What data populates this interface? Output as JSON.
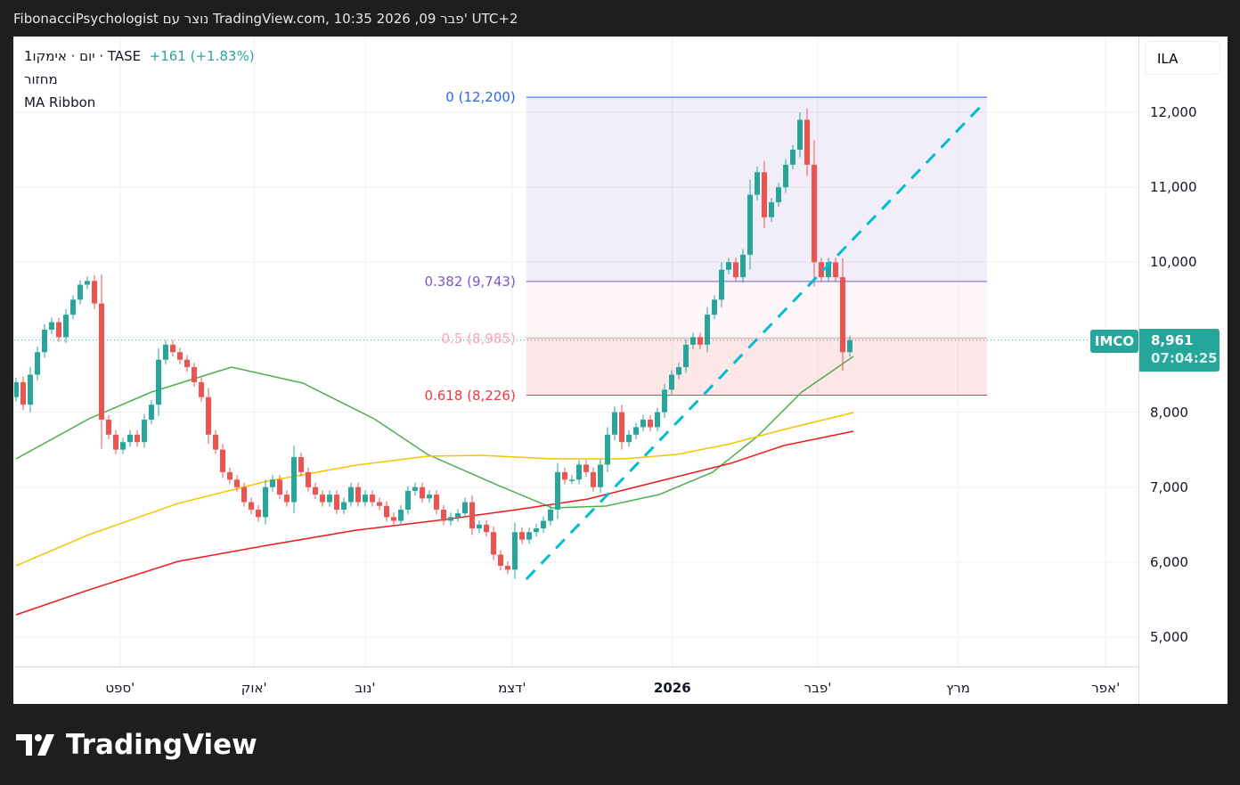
{
  "title": "FibonacciPsychologist נוצר עם TradingView.com, 10:35 2026 ,09 פבר' UTC+2",
  "legend": {
    "symbol": "1יום · אימקו · TASE",
    "change": "+161 (+1.83%)",
    "volume": "מחזור",
    "indicator": "MA Ribbon"
  },
  "currency": "ILA",
  "last_price": {
    "symbol": "IMCO",
    "price": "8,961",
    "countdown": "07:04:25",
    "color": "#26a69a"
  },
  "brand": "TradingView",
  "chart_data": {
    "type": "candlestick",
    "ylim": [
      4620,
      12390
    ],
    "y_ticks": [
      {
        "v": 12000,
        "label": "12,000"
      },
      {
        "v": 11000,
        "label": "11,000"
      },
      {
        "v": 10000,
        "label": "10,000"
      },
      {
        "v": 8000,
        "label": "8,000"
      },
      {
        "v": 7000,
        "label": "7,000"
      },
      {
        "v": 6000,
        "label": "6,000"
      },
      {
        "v": 5000,
        "label": "5,000"
      }
    ],
    "x_ticks": [
      {
        "i": 14.6,
        "label": "ספט'"
      },
      {
        "i": 33.4,
        "label": "אוק'"
      },
      {
        "i": 49,
        "label": "נוב'"
      },
      {
        "i": 69.6,
        "label": "דצמ'"
      },
      {
        "i": 92.1,
        "label": "2026",
        "bold": true
      },
      {
        "i": 112.5,
        "label": "פבר'"
      },
      {
        "i": 132.2,
        "label": "מרץ"
      },
      {
        "i": 152.9,
        "label": "אפר'"
      }
    ],
    "first_open": 8200,
    "closes": [
      8400,
      8100,
      8500,
      8800,
      9100,
      9200,
      9000,
      9300,
      9500,
      9700,
      9750,
      9450,
      7900,
      7700,
      7500,
      7600,
      7700,
      7600,
      7900,
      8100,
      8700,
      8900,
      8800,
      8700,
      8600,
      8400,
      8200,
      7700,
      7500,
      7200,
      7100,
      7000,
      6800,
      6700,
      6600,
      7000,
      7100,
      6900,
      6800,
      7400,
      7200,
      7000,
      6900,
      6800,
      6900,
      6700,
      6800,
      7000,
      6800,
      6900,
      6800,
      6750,
      6600,
      6550,
      6700,
      6950,
      7000,
      6850,
      6900,
      6700,
      6550,
      6600,
      6650,
      6800,
      6450,
      6500,
      6400,
      6100,
      5950,
      5900,
      6400,
      6300,
      6400,
      6450,
      6550,
      6700,
      7200,
      7100,
      7100,
      7300,
      7200,
      7000,
      7300,
      7700,
      8000,
      7600,
      7700,
      7800,
      7900,
      7800,
      8000,
      8300,
      8500,
      8600,
      8900,
      9000,
      8900,
      9300,
      9500,
      9900,
      10000,
      9800,
      10100,
      10900,
      11200,
      10600,
      10800,
      11000,
      11300,
      11500,
      11900,
      11300,
      10000,
      9800,
      10000,
      9800,
      8800,
      8961
    ],
    "ma_series": [
      {
        "name": "MA short",
        "color": "#4caf50",
        "points": [
          [
            0,
            7377
          ],
          [
            10.25,
            7912
          ],
          [
            19,
            8268
          ],
          [
            30.25,
            8601
          ],
          [
            40.25,
            8387
          ],
          [
            50.25,
            7912
          ],
          [
            57.75,
            7436
          ],
          [
            67.75,
            7020
          ],
          [
            75.25,
            6723
          ],
          [
            82.75,
            6747
          ],
          [
            90.25,
            6901
          ],
          [
            97.75,
            7199
          ],
          [
            104,
            7674
          ],
          [
            110.25,
            8268
          ],
          [
            117.5,
            8744
          ]
        ]
      },
      {
        "name": "MA mid",
        "color": "#f5c400",
        "points": [
          [
            0,
            5951
          ],
          [
            10.25,
            6367
          ],
          [
            22.75,
            6783
          ],
          [
            35.25,
            7080
          ],
          [
            47.75,
            7294
          ],
          [
            57.75,
            7412
          ],
          [
            65.25,
            7424
          ],
          [
            75.25,
            7377
          ],
          [
            85.25,
            7377
          ],
          [
            92.75,
            7436
          ],
          [
            100.25,
            7579
          ],
          [
            107.75,
            7769
          ],
          [
            117.5,
            7995
          ]
        ]
      },
      {
        "name": "MA long",
        "color": "#f0191c",
        "points": [
          [
            0,
            5297
          ],
          [
            10.25,
            5630
          ],
          [
            22.75,
            6010
          ],
          [
            35.25,
            6224
          ],
          [
            47.75,
            6426
          ],
          [
            60.25,
            6569
          ],
          [
            70.25,
            6699
          ],
          [
            80.25,
            6842
          ],
          [
            90.25,
            7080
          ],
          [
            100.25,
            7317
          ],
          [
            107.75,
            7555
          ],
          [
            117.5,
            7745
          ]
        ]
      }
    ],
    "fib": {
      "start_i": 71.6,
      "end_i": 136.25,
      "levels": [
        {
          "ratio": "0",
          "value": 12200,
          "label": "0 (12,200)",
          "color": "#2962ff"
        },
        {
          "ratio": "0.382",
          "value": 9743,
          "label": "0.382 (9,743)",
          "color": "#7e57c2"
        },
        {
          "ratio": "0.5",
          "value": 8985,
          "label": "0.5 (8,985)",
          "color": "#f8a5b8"
        },
        {
          "ratio": "0.618",
          "value": 8226,
          "label": "0.618 (8,226)",
          "color": "#f23645"
        }
      ]
    },
    "trendline": {
      "from": [
        71.6,
        5772
      ],
      "to": [
        135.9,
        12131
      ],
      "color": "#00bcd4"
    },
    "up_color": "#26a69a",
    "down_color": "#ef5350"
  }
}
